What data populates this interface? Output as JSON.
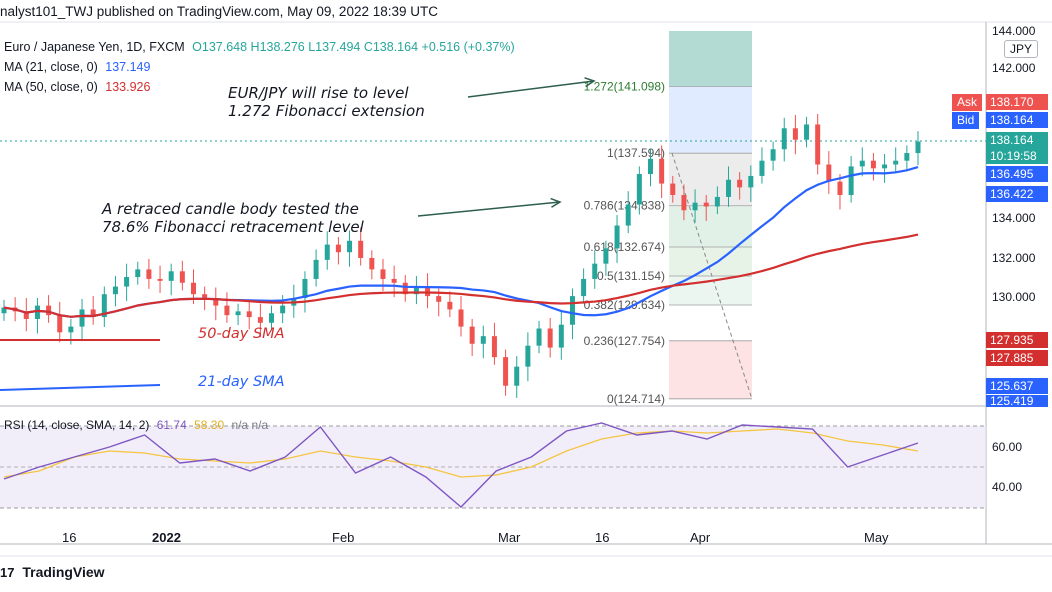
{
  "header": "nalyst101_TWJ published on TradingView.com, May 09, 2022 18:39 UTC",
  "legend": {
    "symbol": "Euro / Japanese Yen, 1D, FXCM",
    "ohlc": "O137.648 H138.276 L137.494 C138.164 +0.516 (+0.37%)",
    "ma21_label": "MA (21, close, 0)",
    "ma21_value": "137.149",
    "ma50_label": "MA (50, close, 0)",
    "ma50_value": "133.926"
  },
  "annotations": {
    "rise_1": "EUR/JPY will rise to level",
    "rise_2": "1.272 Fibonacci extension",
    "retrace_1": "A retraced candle body tested the",
    "retrace_2": "78.6% Fibonacci retracement level",
    "sma50": "50-day SMA",
    "sma21": "21-day SMA"
  },
  "currency": "JPY",
  "price_boxes": {
    "ask_label": "Ask",
    "ask_value": "138.170",
    "bid_label": "Bid",
    "bid_value": "138.164",
    "last": "138.164",
    "countdown": "10:19:58",
    "b1": "136.495",
    "b2": "136.422",
    "b3": "127.935",
    "b4": "127.885",
    "b5": "125.637",
    "b6": "125.419"
  },
  "rsi_legend": {
    "label": "RSI (14, close, SMA, 14, 2)",
    "rsi_value": "61.74",
    "sma_value": "58.30",
    "na": "n/a n/a"
  },
  "footer": "TradingView",
  "colors": {
    "up": "#26a69a",
    "down": "#ef5350",
    "ma21": "#2962ff",
    "ma50": "#d32f2f",
    "rsi": "#7e57c2",
    "rsi_sma": "#f5c542",
    "fib_arrow": "#2e5e4e"
  },
  "chart_data": [
    {
      "type": "line",
      "title": "Euro / Japanese Yen, 1D, FXCM",
      "y_ticks": [
        "144.000",
        "142.000",
        "134.000",
        "132.000",
        "130.000"
      ],
      "x_ticks": [
        "16",
        "2022",
        "Feb",
        "Mar",
        "16",
        "Apr",
        "May"
      ],
      "ylim": [
        124,
        144
      ],
      "fib_levels": [
        {
          "label": "1.272(141.098)",
          "value": 141.098
        },
        {
          "label": "1(137.594)",
          "value": 137.594
        },
        {
          "label": "0.786(134.838)",
          "value": 134.838
        },
        {
          "label": "0.618(132.674)",
          "value": 132.674
        },
        {
          "label": "0.5(131.154)",
          "value": 131.154
        },
        {
          "label": "0.382(129.634)",
          "value": 129.634
        },
        {
          "label": "0.236(127.754)",
          "value": 127.754
        },
        {
          "label": "0(124.714)",
          "value": 124.714
        }
      ],
      "series": [
        {
          "name": "MA (21, close, 0)",
          "x": [
            "Dec 3",
            "Jan 5",
            "Feb 1",
            "Mar 1",
            "Mar 15",
            "Apr 5",
            "May 9"
          ],
          "values": [
            129.0,
            129.5,
            130.6,
            130.4,
            129.0,
            133.0,
            137.1
          ]
        },
        {
          "name": "MA (50, close, 0)",
          "x": [
            "Dec 3",
            "Jan 5",
            "Feb 1",
            "Mar 1",
            "Mar 15",
            "Apr 5",
            "May 9"
          ],
          "values": [
            130.3,
            129.6,
            129.5,
            130.2,
            130.0,
            131.3,
            133.9
          ]
        }
      ]
    },
    {
      "type": "line",
      "title": "RSI (14, close, SMA, 14, 2)",
      "y_ticks": [
        "60.00",
        "40.00"
      ],
      "ylim": [
        25,
        80
      ],
      "series": [
        {
          "name": "RSI",
          "values": [
            44,
            50,
            55,
            60,
            66,
            52,
            54,
            48,
            55,
            70,
            47,
            55,
            45,
            30,
            48,
            55,
            68,
            72,
            66,
            68,
            64,
            71,
            70,
            69,
            50,
            56,
            62
          ]
        },
        {
          "name": "SMA",
          "values": [
            45,
            48,
            55,
            58,
            57,
            54,
            53,
            52,
            54,
            58,
            55,
            53,
            50,
            45,
            46,
            50,
            58,
            64,
            67,
            68,
            67,
            68,
            69,
            67,
            63,
            61,
            58
          ]
        }
      ]
    }
  ]
}
